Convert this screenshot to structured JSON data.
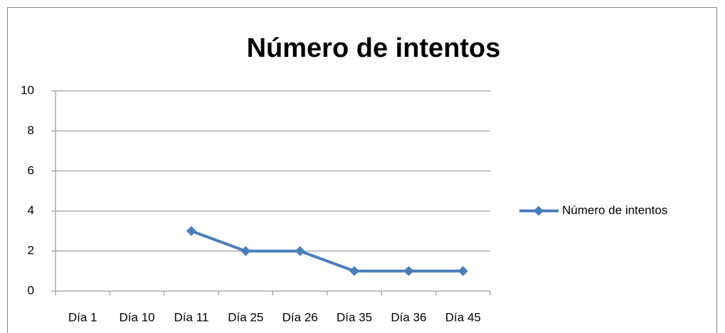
{
  "chart_data": {
    "type": "line",
    "title": "Número de intentos",
    "categories": [
      "Día 1",
      "Día 10",
      "Día 11",
      "Día 25",
      "Día 26",
      "Día 35",
      "Día 36",
      "Día 45"
    ],
    "series": [
      {
        "name": "Número de intentos",
        "color": "#4a7ebb",
        "values": [
          null,
          null,
          3,
          2,
          2,
          1,
          1,
          1
        ]
      }
    ],
    "ylim": [
      0,
      10
    ],
    "yticks": [
      0,
      2,
      4,
      6,
      8,
      10
    ],
    "grid": true,
    "legend": "right"
  }
}
